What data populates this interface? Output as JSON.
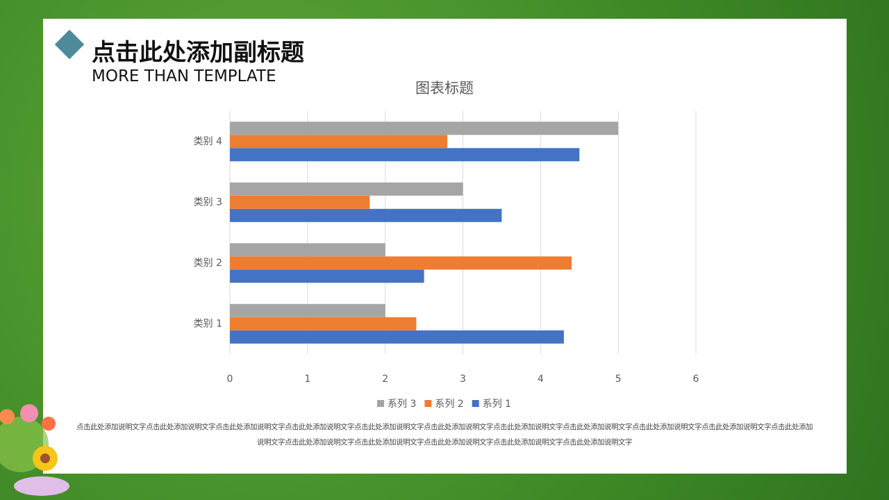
{
  "slide": {
    "title": "点击此处添加副标题",
    "subtitle": "MORE THAN TEMPLATE",
    "description": "点击此处添加说明文字点击此处添加说明文字点击此处添加说明文字点击此处添加说明文字点击此处添加说明文字点击此处添加说明文字点击此处添加说明文字点击此处添加说明文字点击此处添加说明文字点击此处添加说明文字点击此处添加说明文字点击此处添加说明文字点击此处添加说明文字点击此处添加说明文字点击此处添加说明文字点击此处添加说明文字"
  },
  "chart_data": {
    "type": "hbar",
    "title": "图表标题",
    "categories": [
      "类别 1",
      "类别 2",
      "类别 3",
      "类别 4"
    ],
    "series": [
      {
        "name": "系列 1",
        "color": "#4472c4",
        "values": [
          4.3,
          2.5,
          3.5,
          4.5
        ]
      },
      {
        "name": "系列 2",
        "color": "#ed7d31",
        "values": [
          2.4,
          4.4,
          1.8,
          2.8
        ]
      },
      {
        "name": "系列 3",
        "color": "#a5a5a5",
        "values": [
          2,
          2,
          3,
          5
        ]
      }
    ],
    "xlim": [
      0,
      6
    ],
    "xticks": [
      0,
      1,
      2,
      3,
      4,
      5,
      6
    ],
    "grid": true,
    "legend": "bottom"
  }
}
